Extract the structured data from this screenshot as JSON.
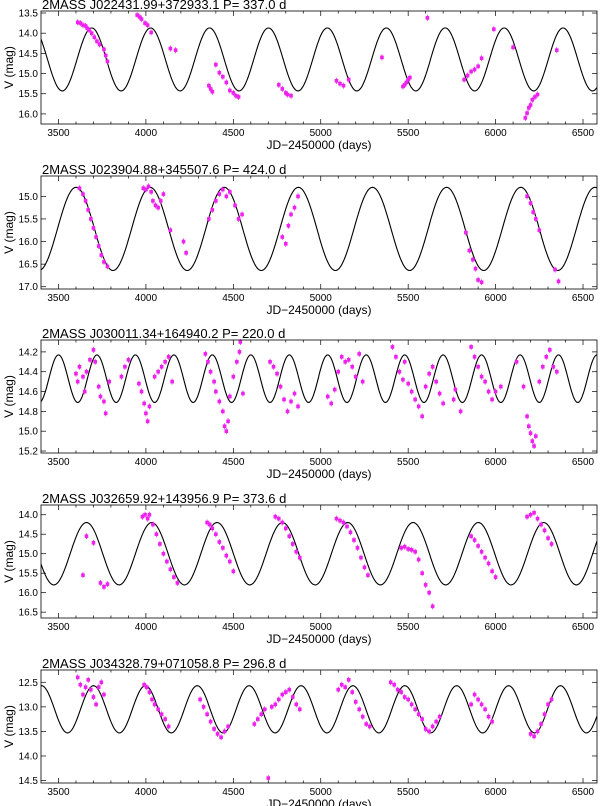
{
  "chart_data": [
    {
      "type": "scatter",
      "title": "2MASS J022431.99+372933.1    P= 337.0 d",
      "xlabel": "JD−2450000 (days)",
      "ylabel": "V (mag)",
      "xlim": [
        3400,
        6580
      ],
      "ylim": [
        16.25,
        13.45
      ],
      "x_ticks": [
        3500,
        4000,
        4500,
        5000,
        5500,
        6000,
        6500
      ],
      "y_ticks": [
        13.5,
        14.0,
        14.5,
        15.0,
        15.5,
        16.0
      ],
      "y_tick_labels": [
        "13.5",
        "14.0",
        "14.5",
        "15.0",
        "15.5",
        "16.0"
      ],
      "model": {
        "period": 337.0,
        "mean": 14.65,
        "amplitude": 0.78,
        "phase_zero_jd": 3690
      },
      "series": [
        {
          "x": [
            3610,
            3625,
            3640,
            3655,
            3665,
            3675,
            3690,
            3705,
            3720,
            3735,
            3760,
            3770,
            3780,
            3950,
            3965,
            3975,
            3995,
            4010,
            4030,
            4140,
            4170,
            4360,
            4370,
            4380,
            4400,
            4420,
            4440,
            4460,
            4480,
            4500,
            4515,
            4530,
            4760,
            4780,
            4800,
            4810,
            4830,
            5090,
            5110,
            5130,
            5160,
            5350,
            5470,
            5480,
            5490,
            5500,
            5510,
            5610,
            5820,
            5840,
            5860,
            5880,
            5900,
            5920,
            5990,
            6100,
            6170,
            6180,
            6190,
            6200,
            6210,
            6225,
            6240,
            6350
          ],
          "y": [
            13.73,
            13.75,
            13.8,
            13.82,
            13.88,
            13.92,
            14.0,
            14.1,
            14.2,
            14.28,
            14.4,
            14.55,
            14.7,
            13.55,
            13.6,
            13.65,
            13.75,
            13.8,
            13.98,
            14.38,
            14.42,
            15.3,
            15.38,
            15.45,
            14.78,
            14.98,
            15.08,
            15.22,
            15.42,
            15.48,
            15.55,
            15.58,
            15.28,
            15.38,
            15.48,
            15.52,
            15.55,
            15.18,
            15.25,
            15.3,
            15.15,
            14.6,
            15.32,
            15.28,
            15.22,
            15.15,
            15.1,
            13.62,
            15.15,
            15.05,
            14.95,
            14.9,
            14.82,
            14.62,
            13.9,
            14.35,
            16.1,
            15.98,
            15.85,
            15.78,
            15.65,
            15.58,
            15.52,
            14.42
          ]
        }
      ]
    },
    {
      "type": "scatter",
      "title": "2MASS J023904.88+345507.6    P= 424.0 d",
      "xlabel": "JD−2450000 (days)",
      "ylabel": "V (mag)",
      "xlim": [
        3400,
        6580
      ],
      "ylim": [
        17.05,
        14.55
      ],
      "x_ticks": [
        3500,
        4000,
        4500,
        5000,
        5500,
        6000,
        6500
      ],
      "y_ticks": [
        15.0,
        15.5,
        16.0,
        16.5,
        17.0
      ],
      "y_tick_labels": [
        "15.0",
        "15.5",
        "16.0",
        "16.5",
        "17.0"
      ],
      "model": {
        "period": 424.0,
        "mean": 15.72,
        "amplitude": 0.92,
        "phase_zero_jd": 3600
      },
      "series": [
        {
          "x": [
            3620,
            3640,
            3655,
            3670,
            3685,
            3700,
            3715,
            3730,
            3745,
            3760,
            3780,
            3985,
            4000,
            4015,
            4030,
            4040,
            4055,
            4070,
            4085,
            4100,
            4140,
            4215,
            4230,
            4360,
            4380,
            4400,
            4420,
            4440,
            4460,
            4480,
            4510,
            4530,
            4550,
            4780,
            4800,
            4815,
            4830,
            4850,
            4870,
            5830,
            5850,
            5870,
            5885,
            5900,
            5920,
            6180,
            6200,
            6215,
            6230,
            6250,
            6340,
            6360
          ],
          "y": [
            14.82,
            14.95,
            15.1,
            15.3,
            15.5,
            15.7,
            15.9,
            16.1,
            16.3,
            16.45,
            16.55,
            14.82,
            14.85,
            14.78,
            14.9,
            15.1,
            15.2,
            15.25,
            15.1,
            14.95,
            15.75,
            16.0,
            16.25,
            15.5,
            15.3,
            15.1,
            14.95,
            14.85,
            15.0,
            14.9,
            15.2,
            15.5,
            15.4,
            15.9,
            16.05,
            15.65,
            15.4,
            15.25,
            15.0,
            15.8,
            16.2,
            16.4,
            16.6,
            16.85,
            16.9,
            15.0,
            15.15,
            15.35,
            15.5,
            15.75,
            16.62,
            16.88
          ]
        }
      ]
    },
    {
      "type": "scatter",
      "title": "2MASS J030011.34+164940.2    P= 220.0 d",
      "xlabel": "JD−2450000 (days)",
      "ylabel": "V (mag)",
      "xlim": [
        3400,
        6580
      ],
      "ylim": [
        15.22,
        14.08
      ],
      "x_ticks": [
        3500,
        4000,
        4500,
        5000,
        5500,
        6000,
        6500
      ],
      "y_ticks": [
        14.2,
        14.4,
        14.6,
        14.8,
        15.0,
        15.2
      ],
      "y_tick_labels": [
        "14.2",
        "14.4",
        "14.6",
        "14.8",
        "15.0",
        "15.2"
      ],
      "model": {
        "period": 220.0,
        "mean": 14.47,
        "amplitude": 0.24,
        "phase_zero_jd": 3720
      },
      "series": [
        {
          "x": [
            3600,
            3610,
            3620,
            3640,
            3650,
            3660,
            3680,
            3700,
            3710,
            3730,
            3740,
            3760,
            3770,
            3790,
            3860,
            3880,
            3900,
            3960,
            3975,
            3990,
            4000,
            4010,
            4020,
            4050,
            4070,
            4090,
            4110,
            4130,
            4150,
            4340,
            4355,
            4370,
            4390,
            4400,
            4420,
            4440,
            4450,
            4460,
            4470,
            4480,
            4500,
            4520,
            4535,
            4540,
            4555,
            4710,
            4730,
            4750,
            4770,
            4790,
            4810,
            4830,
            4850,
            4870,
            5040,
            5060,
            5080,
            5100,
            5120,
            5140,
            5160,
            5180,
            5200,
            5220,
            5240,
            5410,
            5430,
            5450,
            5470,
            5480,
            5500,
            5520,
            5540,
            5560,
            5580,
            5600,
            5620,
            5640,
            5660,
            5680,
            5700,
            5760,
            5770,
            5800,
            5860,
            5880,
            5900,
            5920,
            5940,
            5960,
            5980,
            6000,
            6030,
            6120,
            6160,
            6180,
            6190,
            6200,
            6210,
            6220,
            6230,
            6250,
            6270,
            6290,
            6310,
            6330,
            6350
          ],
          "y": [
            14.42,
            14.5,
            14.35,
            14.45,
            14.6,
            14.4,
            14.28,
            14.18,
            14.3,
            14.55,
            14.65,
            14.7,
            14.82,
            14.5,
            14.45,
            14.35,
            14.28,
            14.52,
            14.6,
            14.72,
            14.82,
            14.9,
            14.75,
            14.45,
            14.4,
            14.35,
            14.3,
            14.25,
            14.5,
            14.22,
            14.3,
            14.4,
            14.5,
            14.6,
            14.7,
            14.8,
            14.95,
            15.0,
            14.9,
            14.65,
            14.45,
            14.3,
            14.2,
            14.1,
            14.62,
            14.3,
            14.35,
            14.42,
            14.55,
            14.68,
            14.8,
            14.7,
            14.62,
            14.75,
            14.65,
            14.72,
            14.58,
            14.4,
            14.25,
            14.3,
            14.28,
            14.35,
            14.45,
            14.22,
            14.5,
            14.15,
            14.25,
            14.4,
            14.48,
            14.3,
            14.52,
            14.6,
            14.68,
            14.75,
            14.85,
            14.55,
            14.42,
            14.35,
            14.5,
            14.62,
            14.72,
            14.68,
            14.58,
            14.8,
            14.15,
            14.25,
            14.35,
            14.45,
            14.5,
            14.6,
            14.68,
            14.6,
            14.55,
            14.3,
            14.55,
            14.85,
            14.95,
            15.02,
            15.1,
            15.15,
            15.05,
            14.5,
            14.35,
            14.25,
            14.18,
            14.35,
            14.4
          ]
        }
      ]
    },
    {
      "type": "scatter",
      "title": "2MASS J032659.92+143956.9    P= 373.6 d",
      "xlabel": "JD−2450000 (days)",
      "ylabel": "V (mag)",
      "xlim": [
        3400,
        6580
      ],
      "ylim": [
        16.65,
        13.75
      ],
      "x_ticks": [
        3500,
        4000,
        4500,
        5000,
        5500,
        6000,
        6500
      ],
      "y_ticks": [
        14.0,
        14.5,
        15.0,
        15.5,
        16.0,
        16.5
      ],
      "y_tick_labels": [
        "14.0",
        "14.5",
        "15.0",
        "15.5",
        "16.0",
        "16.5"
      ],
      "model": {
        "period": 373.6,
        "mean": 15.0,
        "amplitude": 0.8,
        "phase_zero_jd": 3660
      },
      "series": [
        {
          "x": [
            3640,
            3660,
            3700,
            3740,
            3760,
            3780,
            3980,
            3995,
            4010,
            4020,
            4040,
            4060,
            4080,
            4100,
            4120,
            4140,
            4160,
            4180,
            4350,
            4365,
            4380,
            4400,
            4420,
            4440,
            4460,
            4480,
            4500,
            4740,
            4760,
            4780,
            4800,
            4820,
            4840,
            4860,
            4880,
            5090,
            5110,
            5130,
            5150,
            5170,
            5190,
            5210,
            5230,
            5250,
            5270,
            5460,
            5480,
            5500,
            5520,
            5540,
            5560,
            5580,
            5600,
            5620,
            5640,
            5860,
            5880,
            5900,
            5920,
            5940,
            5960,
            5980,
            6000,
            6180,
            6200,
            6220,
            6240,
            6260,
            6280,
            6300,
            6320
          ],
          "y": [
            15.55,
            14.55,
            14.72,
            15.75,
            15.85,
            15.78,
            14.05,
            14.0,
            14.1,
            14.0,
            14.25,
            14.5,
            14.75,
            15.0,
            15.2,
            15.4,
            15.6,
            15.75,
            14.2,
            14.25,
            14.35,
            14.5,
            14.7,
            14.85,
            15.05,
            15.2,
            15.45,
            14.05,
            14.1,
            14.2,
            14.35,
            14.55,
            14.75,
            14.95,
            15.1,
            14.1,
            14.15,
            14.2,
            14.3,
            14.45,
            14.65,
            14.85,
            15.1,
            15.35,
            15.55,
            14.85,
            14.82,
            14.88,
            14.9,
            14.95,
            15.15,
            15.5,
            15.8,
            16.0,
            16.35,
            14.55,
            14.65,
            14.8,
            14.95,
            15.1,
            15.25,
            15.45,
            15.6,
            14.05,
            14.0,
            13.95,
            14.1,
            14.25,
            14.4,
            14.6,
            14.75
          ]
        }
      ]
    },
    {
      "type": "scatter",
      "title": "2MASS J034328.79+071058.8    P= 296.8 d",
      "xlabel": "JD−2450000 (days)",
      "ylabel": "V (mag)",
      "xlim": [
        3400,
        6580
      ],
      "ylim": [
        14.55,
        12.25
      ],
      "x_ticks": [
        3500,
        4000,
        4500,
        5000,
        5500,
        6000,
        6500
      ],
      "y_ticks": [
        12.5,
        13.0,
        13.5,
        14.0,
        14.5
      ],
      "y_tick_labels": [
        "12.5",
        "13.0",
        "13.5",
        "14.0",
        "14.5"
      ],
      "model": {
        "period": 296.8,
        "mean": 13.05,
        "amplitude": 0.48,
        "phase_zero_jd": 3700
      },
      "series": [
        {
          "x": [
            3610,
            3625,
            3640,
            3655,
            3670,
            3685,
            3700,
            3715,
            3730,
            3745,
            3760,
            3990,
            4005,
            4020,
            4035,
            4050,
            4070,
            4090,
            4110,
            4130,
            4310,
            4330,
            4350,
            4370,
            4390,
            4410,
            4430,
            4450,
            4470,
            4620,
            4640,
            4660,
            4680,
            4700,
            4720,
            4740,
            4760,
            4780,
            4800,
            4820,
            4840,
            4860,
            4880,
            5100,
            5120,
            5140,
            5160,
            5180,
            5200,
            5220,
            5240,
            5260,
            5280,
            5400,
            5420,
            5440,
            5460,
            5480,
            5500,
            5520,
            5540,
            5560,
            5580,
            5600,
            5620,
            5640,
            5660,
            5680,
            5860,
            5880,
            5900,
            5920,
            5940,
            5960,
            5980,
            6200,
            6220,
            6240,
            6260,
            6280,
            6300,
            6320
          ],
          "y": [
            12.4,
            12.55,
            12.75,
            12.6,
            12.45,
            12.65,
            12.8,
            12.95,
            12.6,
            12.5,
            12.75,
            12.55,
            12.6,
            12.7,
            12.85,
            12.95,
            13.05,
            13.15,
            13.25,
            13.4,
            12.85,
            13.0,
            13.15,
            13.3,
            13.45,
            13.55,
            13.62,
            13.5,
            13.4,
            13.35,
            13.25,
            13.15,
            13.05,
            14.45,
            13.0,
            12.95,
            12.85,
            12.75,
            12.7,
            12.65,
            12.8,
            12.95,
            13.05,
            12.65,
            12.55,
            12.6,
            12.45,
            12.7,
            12.9,
            13.05,
            13.2,
            13.35,
            13.4,
            12.5,
            12.55,
            12.65,
            12.7,
            12.8,
            12.85,
            12.95,
            13.05,
            13.15,
            13.25,
            13.45,
            13.5,
            13.4,
            13.3,
            13.2,
            12.95,
            12.75,
            12.85,
            12.95,
            13.05,
            13.2,
            13.3,
            13.55,
            13.6,
            13.5,
            13.35,
            13.15,
            12.95,
            12.85
          ]
        }
      ]
    }
  ]
}
